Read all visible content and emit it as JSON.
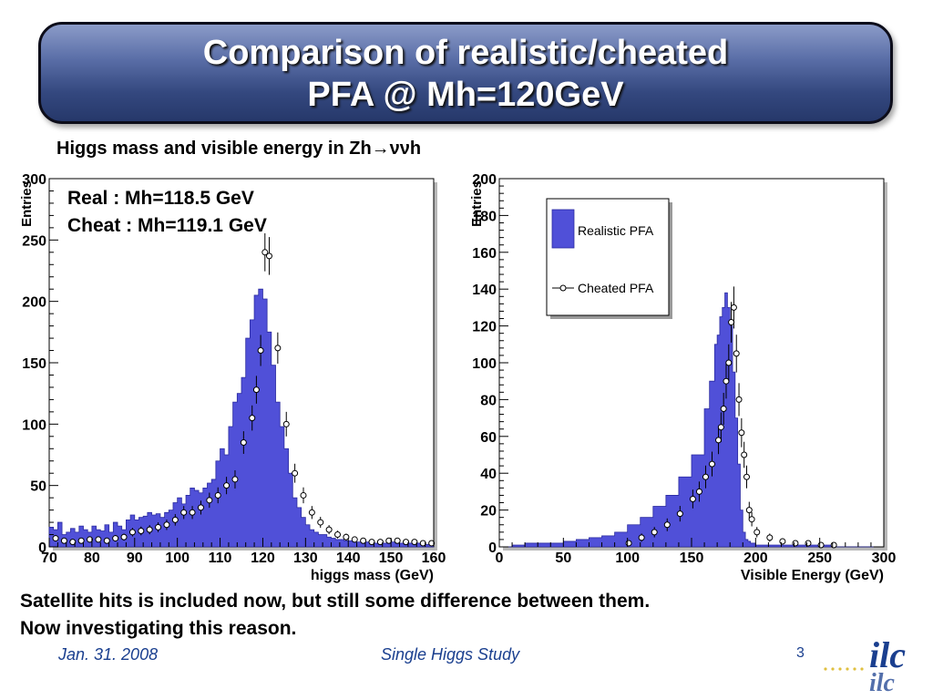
{
  "title": {
    "line1": "Comparison of realistic/cheated",
    "line2": "PFA @ Mh=120GeV"
  },
  "subtitle": "Higgs mass and visible energy in Zh→ννh",
  "notes": {
    "line1": "Satellite hits is included now, but still some difference between them.",
    "line2": "Now investigating this reason."
  },
  "footer": {
    "date": "Jan. 31. 2008",
    "center": "Single Higgs Study",
    "page": "3"
  },
  "logo": {
    "text": "ilc",
    "color": "#1a3f8f"
  },
  "colors": {
    "fill": "#5050d8",
    "edge": "#2a2aa0",
    "marker": "#000000"
  },
  "chart_data": [
    {
      "type": "bar",
      "xlabel": "higgs mass (GeV)",
      "ylabel": "Entries",
      "xlim": [
        70,
        160
      ],
      "ylim": [
        0,
        300
      ],
      "xticks": [
        70,
        80,
        90,
        100,
        110,
        120,
        130,
        140,
        150,
        160
      ],
      "yticks": [
        0,
        50,
        100,
        150,
        200,
        250,
        300
      ],
      "annotations": [
        "Real   : Mh=118.5 GeV",
        "Cheat : Mh=119.1 GeV"
      ],
      "bin_width": 1,
      "series": [
        {
          "name": "Realistic PFA",
          "style": "histogram",
          "x": [
            70,
            71,
            72,
            73,
            74,
            75,
            76,
            77,
            78,
            79,
            80,
            81,
            82,
            83,
            84,
            85,
            86,
            87,
            88,
            89,
            90,
            91,
            92,
            93,
            94,
            95,
            96,
            97,
            98,
            99,
            100,
            101,
            102,
            103,
            104,
            105,
            106,
            107,
            108,
            109,
            110,
            111,
            112,
            113,
            114,
            115,
            116,
            117,
            118,
            119,
            120,
            121,
            122,
            123,
            124,
            125,
            126,
            127,
            128,
            129,
            130,
            131,
            132,
            133,
            134,
            135,
            136,
            137,
            138,
            139,
            140,
            141,
            142,
            143,
            144,
            145,
            146,
            147,
            148,
            149,
            150,
            151,
            152,
            153,
            154,
            155,
            156,
            157,
            158,
            159
          ],
          "y": [
            16,
            14,
            20,
            10,
            12,
            15,
            12,
            17,
            14,
            12,
            17,
            14,
            13,
            18,
            12,
            20,
            17,
            14,
            22,
            26,
            22,
            24,
            25,
            28,
            26,
            27,
            24,
            28,
            30,
            36,
            40,
            35,
            42,
            48,
            46,
            44,
            48,
            52,
            55,
            70,
            80,
            75,
            98,
            118,
            125,
            138,
            170,
            185,
            205,
            210,
            202,
            175,
            148,
            118,
            98,
            80,
            60,
            40,
            32,
            24,
            18,
            14,
            12,
            10,
            10,
            8,
            7,
            6,
            6,
            5,
            5,
            4,
            4,
            5,
            4,
            3,
            3,
            3,
            3,
            4,
            4,
            3,
            3,
            2,
            3,
            3,
            3,
            2,
            2,
            3
          ]
        },
        {
          "name": "Cheated PFA",
          "style": "markers",
          "x": [
            71,
            73,
            75,
            77,
            79,
            81,
            83,
            85,
            87,
            89,
            91,
            93,
            95,
            97,
            99,
            101,
            103,
            105,
            107,
            109,
            111,
            113,
            115,
            117,
            118,
            119,
            120,
            121,
            123,
            125,
            127,
            129,
            131,
            133,
            135,
            137,
            139,
            141,
            143,
            145,
            147,
            149,
            151,
            153,
            155,
            157,
            159
          ],
          "y": [
            7,
            5,
            4,
            5,
            6,
            6,
            5,
            7,
            8,
            12,
            13,
            14,
            16,
            18,
            22,
            28,
            28,
            32,
            38,
            42,
            50,
            55,
            85,
            105,
            128,
            160,
            240,
            237,
            162,
            100,
            60,
            42,
            28,
            20,
            14,
            10,
            8,
            6,
            5,
            4,
            4,
            5,
            5,
            4,
            4,
            3,
            3
          ]
        }
      ]
    },
    {
      "type": "bar",
      "xlabel": "Visible Energy (GeV)",
      "ylabel": "Entries",
      "xlim": [
        0,
        300
      ],
      "ylim": [
        0,
        200
      ],
      "xticks": [
        0,
        50,
        100,
        150,
        200,
        250,
        300
      ],
      "yticks": [
        0,
        20,
        40,
        60,
        80,
        100,
        120,
        140,
        160,
        180,
        200
      ],
      "legend_position": "top-left",
      "bin_width": 2,
      "series": [
        {
          "name": "Realistic PFA",
          "style": "histogram",
          "x": [
            0,
            10,
            20,
            30,
            40,
            50,
            60,
            70,
            80,
            90,
            100,
            110,
            120,
            130,
            140,
            150,
            160,
            164,
            168,
            170,
            172,
            174,
            176,
            178,
            180,
            182,
            184,
            186,
            188,
            190,
            192,
            194,
            196,
            198,
            200,
            210,
            220,
            230,
            240,
            250,
            260,
            270,
            280,
            290
          ],
          "y": [
            0,
            1,
            2,
            2,
            2,
            3,
            4,
            5,
            6,
            8,
            12,
            16,
            22,
            28,
            38,
            50,
            75,
            90,
            110,
            115,
            125,
            130,
            138,
            130,
            120,
            95,
            70,
            45,
            20,
            8,
            4,
            3,
            2,
            2,
            1,
            1,
            1,
            1,
            1,
            1,
            0,
            0,
            0,
            0
          ]
        },
        {
          "name": "Cheated PFA",
          "style": "markers",
          "x": [
            100,
            110,
            120,
            130,
            140,
            150,
            155,
            160,
            165,
            170,
            172,
            174,
            176,
            178,
            180,
            182,
            184,
            186,
            188,
            190,
            192,
            194,
            196,
            200,
            210,
            220,
            230,
            240,
            250,
            260
          ],
          "y": [
            2,
            5,
            8,
            12,
            18,
            26,
            30,
            38,
            45,
            58,
            65,
            75,
            90,
            100,
            122,
            130,
            105,
            80,
            62,
            50,
            38,
            20,
            15,
            8,
            5,
            3,
            2,
            2,
            1,
            1
          ]
        }
      ]
    }
  ]
}
